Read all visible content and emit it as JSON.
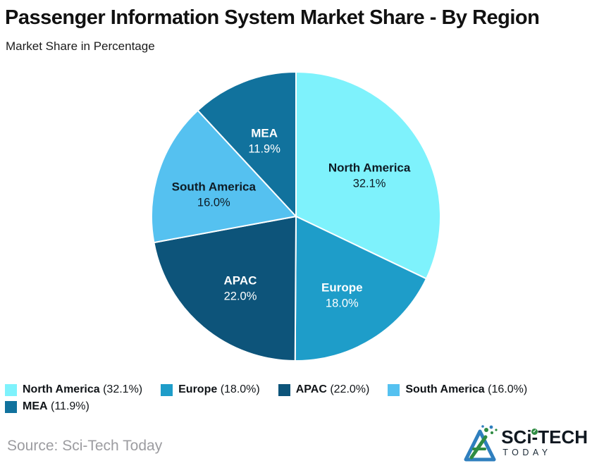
{
  "header": {
    "title": "Passenger Information System Market Share - By Region",
    "subtitle": "Market Share in Percentage"
  },
  "chart_data": {
    "type": "pie",
    "title": "Passenger Information System Market Share - By Region",
    "subtitle": "Market Share in Percentage",
    "unit": "percent",
    "start_angle_deg": 0,
    "direction": "clockwise",
    "legend_position": "bottom",
    "slices": [
      {
        "label": "North America",
        "value": 32.1,
        "display": "32.1%",
        "color": "#7EF2FC",
        "text_color": "#0D1B24"
      },
      {
        "label": "Europe",
        "value": 18.0,
        "display": "18.0%",
        "color": "#1E9DC9",
        "text_color": "#FFFFFF"
      },
      {
        "label": "APAC",
        "value": 22.0,
        "display": "22.0%",
        "color": "#0D547A",
        "text_color": "#FFFFFF"
      },
      {
        "label": "South America",
        "value": 16.0,
        "display": "16.0%",
        "color": "#55C1F0",
        "text_color": "#0D1B24"
      },
      {
        "label": "MEA",
        "value": 11.9,
        "display": "11.9%",
        "color": "#11729D",
        "text_color": "#FFFFFF"
      }
    ]
  },
  "footer": {
    "source": "Source: Sci-Tech Today",
    "logo": {
      "line1": "SCi-TECH",
      "line2": "TODAY",
      "accent_green": "#2E8B42",
      "accent_blue": "#2F7FBE"
    }
  }
}
